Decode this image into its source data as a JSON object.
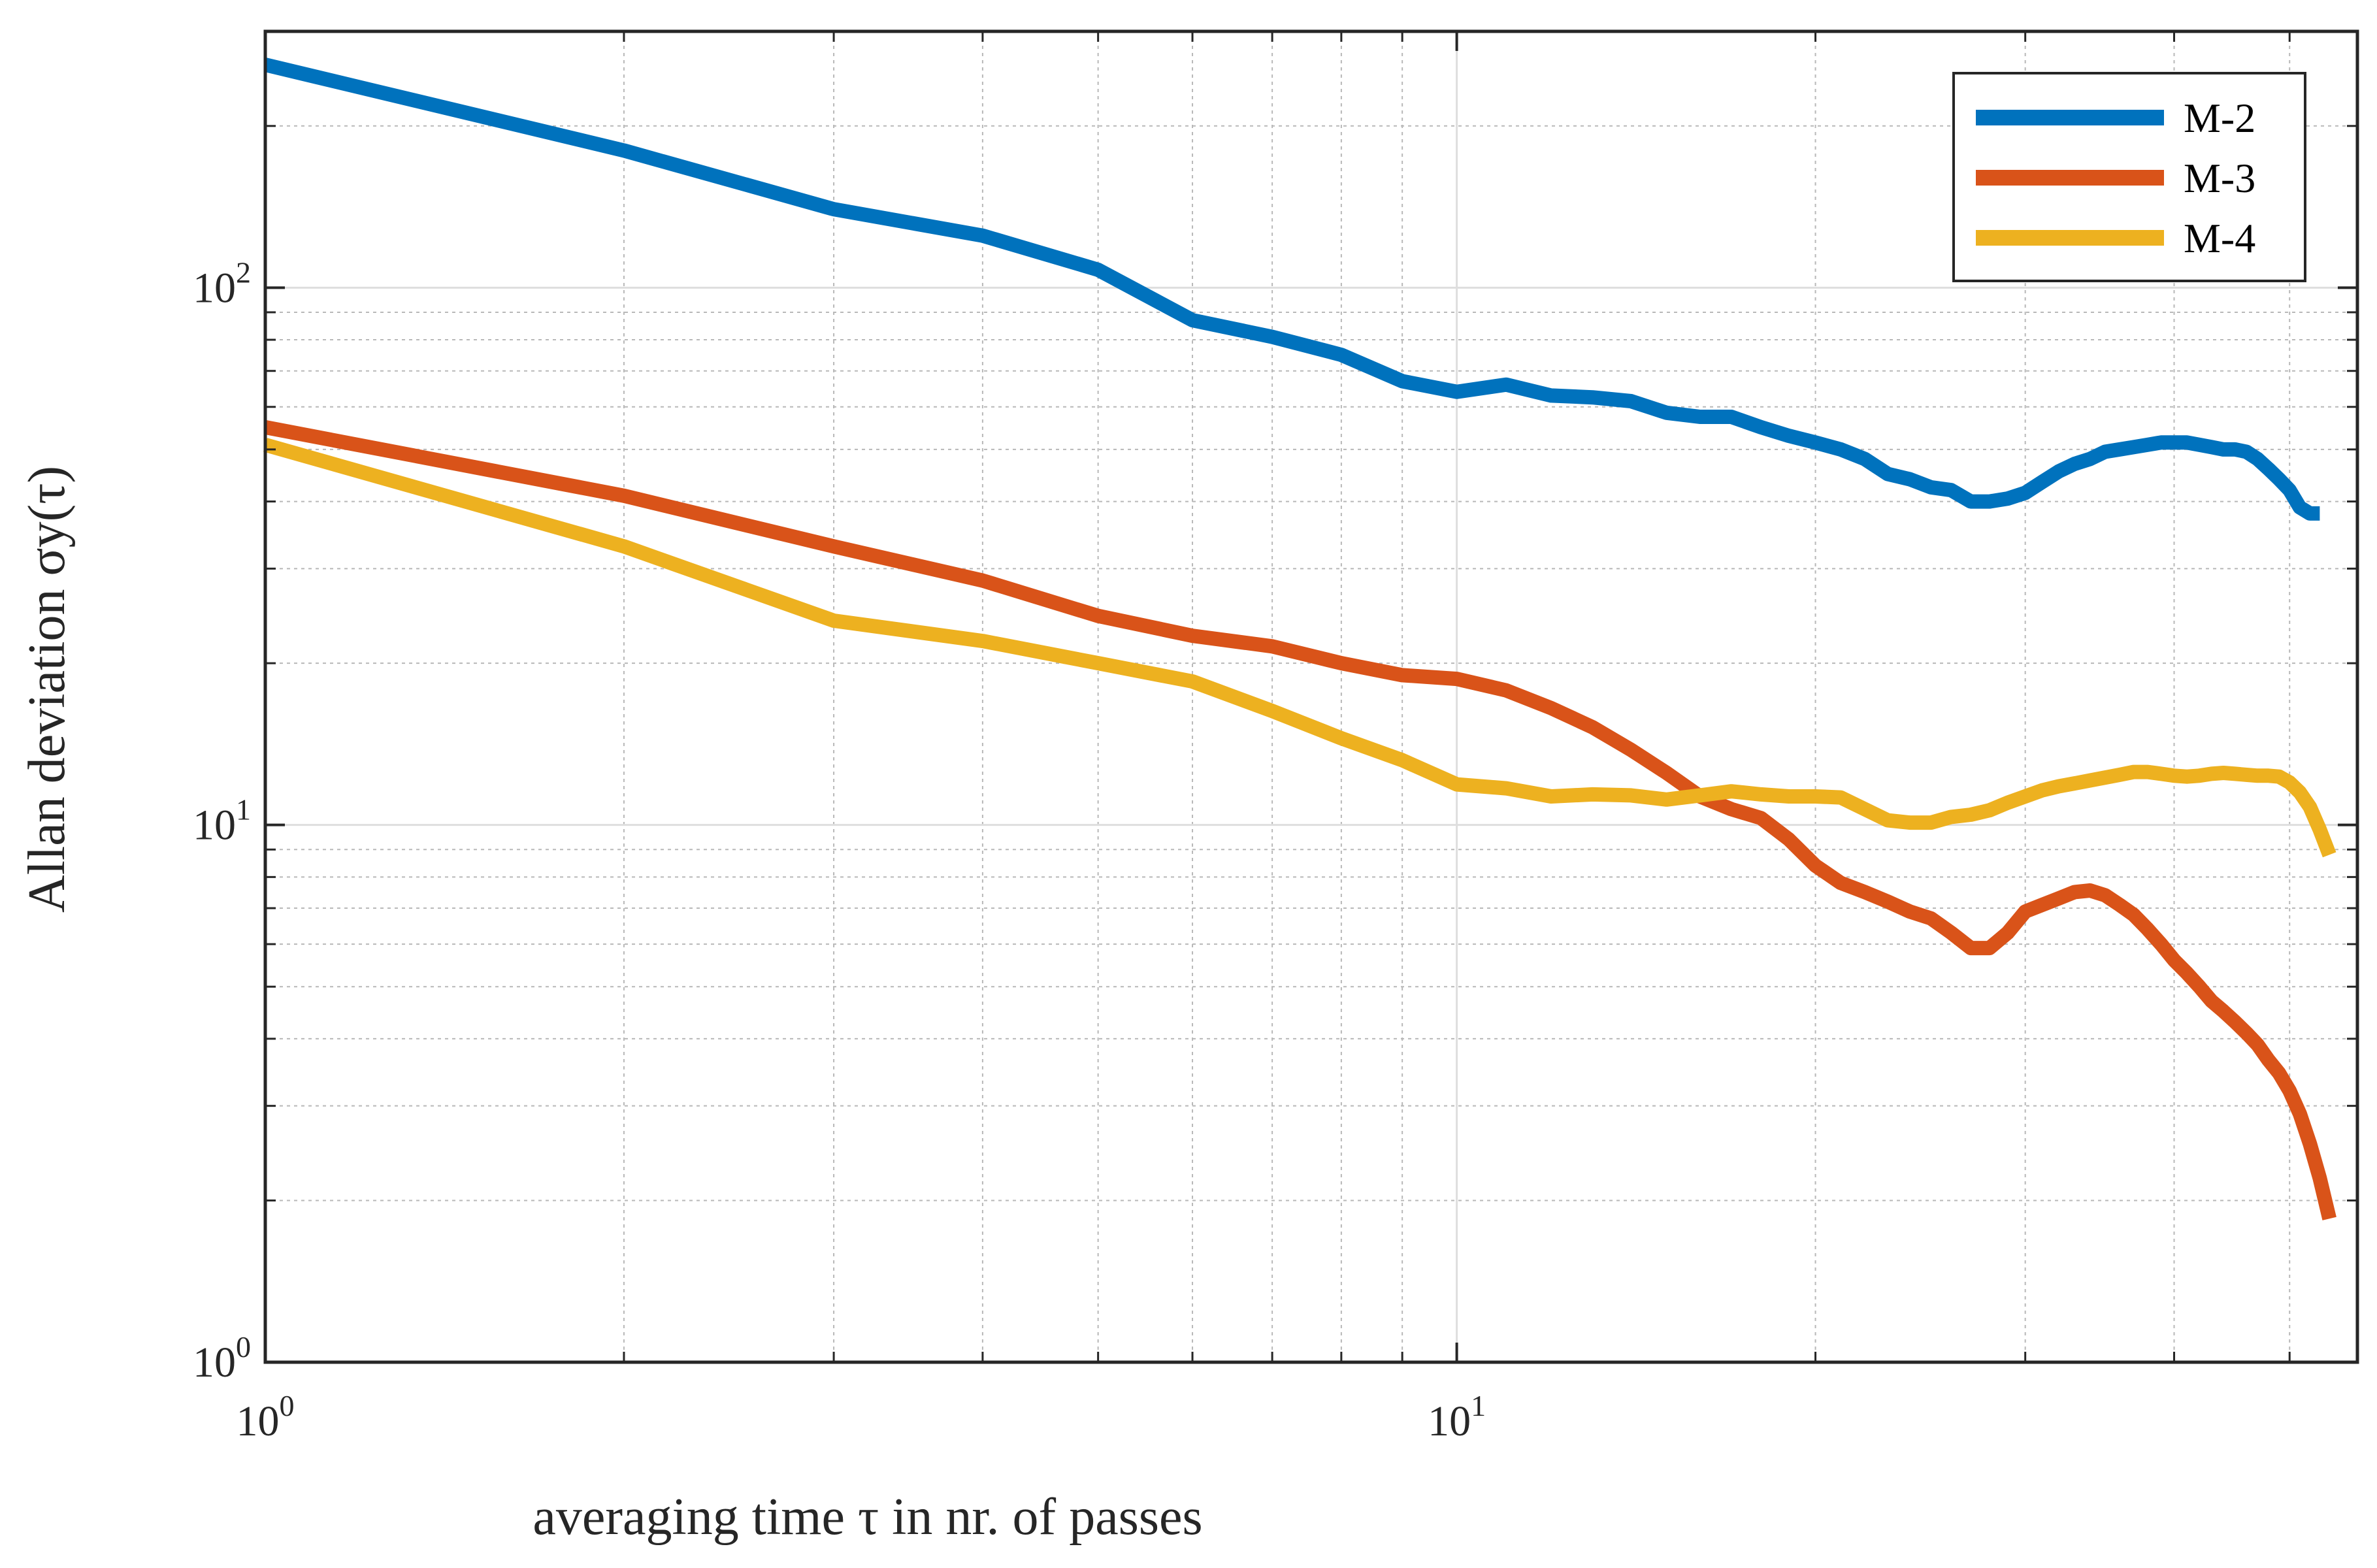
{
  "chart_data": {
    "type": "line",
    "title": "",
    "xscale": "log",
    "yscale": "log",
    "xlim": [
      1,
      57
    ],
    "ylim": [
      1,
      300
    ],
    "xlabel": "averaging time τ in nr. of passes",
    "ylabel": "Allan deviation σy(τ)",
    "xticks": [
      {
        "base": "10",
        "exp": "0",
        "value": 1
      },
      {
        "base": "10",
        "exp": "1",
        "value": 10
      }
    ],
    "yticks": [
      {
        "base": "10",
        "exp": "0",
        "value": 1
      },
      {
        "base": "10",
        "exp": "1",
        "value": 10
      },
      {
        "base": "10",
        "exp": "2",
        "value": 100
      }
    ],
    "grid": true,
    "legend_position": "top-right",
    "series": [
      {
        "name": "M-2",
        "color": "#0072BD",
        "x": [
          1,
          2,
          3,
          4,
          5,
          6,
          7,
          8,
          9,
          10,
          11,
          12,
          13,
          14,
          15,
          16,
          17,
          18,
          19,
          20,
          21,
          22,
          23,
          24,
          25,
          26,
          27,
          28,
          29,
          30,
          31,
          32,
          33,
          34,
          35,
          36,
          37,
          38,
          39,
          40,
          41,
          42,
          43,
          44,
          45,
          46,
          47,
          48,
          49,
          50,
          51,
          52,
          53
        ],
        "y": [
          260,
          180,
          140,
          125,
          108,
          87,
          81,
          75,
          67,
          64,
          66,
          63,
          62.5,
          61.5,
          58.5,
          57.5,
          57.5,
          55,
          53,
          51.5,
          50,
          48,
          45,
          44,
          42.5,
          42,
          40,
          40,
          40.5,
          41.5,
          43.5,
          45.5,
          47,
          48,
          49.5,
          50,
          50.5,
          51,
          51.5,
          51.5,
          51.5,
          51,
          50.5,
          50,
          50,
          49.5,
          48,
          46,
          44,
          42,
          39,
          38,
          38
        ]
      },
      {
        "name": "M-3",
        "color": "#D95319",
        "x": [
          1,
          2,
          3,
          4,
          5,
          6,
          7,
          8,
          9,
          10,
          11,
          12,
          13,
          14,
          15,
          16,
          17,
          18,
          19,
          20,
          21,
          22,
          23,
          24,
          25,
          26,
          27,
          28,
          29,
          30,
          31,
          32,
          33,
          34,
          35,
          36,
          37,
          38,
          39,
          40,
          41,
          42,
          43,
          44,
          45,
          46,
          47,
          48,
          49,
          50,
          51,
          52,
          53,
          54
        ],
        "y": [
          55,
          41,
          33,
          28.5,
          24.5,
          22.5,
          21.5,
          20,
          19,
          18.7,
          17.8,
          16.5,
          15.2,
          13.8,
          12.5,
          11.3,
          10.7,
          10.3,
          9.4,
          8.4,
          7.8,
          7.5,
          7.2,
          6.9,
          6.7,
          6.3,
          5.9,
          5.9,
          6.3,
          6.9,
          7.1,
          7.3,
          7.5,
          7.55,
          7.4,
          7.1,
          6.8,
          6.4,
          6.0,
          5.6,
          5.3,
          5.0,
          4.7,
          4.5,
          4.3,
          4.1,
          3.9,
          3.65,
          3.45,
          3.2,
          2.9,
          2.55,
          2.2,
          1.85
        ]
      },
      {
        "name": "M-4",
        "color": "#EDB120",
        "x": [
          1,
          2,
          3,
          4,
          5,
          6,
          7,
          8,
          9,
          10,
          11,
          12,
          13,
          14,
          15,
          16,
          17,
          18,
          19,
          20,
          21,
          22,
          23,
          24,
          25,
          26,
          27,
          28,
          29,
          30,
          31,
          32,
          33,
          34,
          35,
          36,
          37,
          38,
          39,
          40,
          41,
          42,
          43,
          44,
          45,
          46,
          47,
          48,
          49,
          50,
          51,
          52,
          53,
          54
        ],
        "y": [
          51,
          33,
          24,
          22,
          20,
          18.5,
          16.3,
          14.5,
          13.2,
          11.9,
          11.7,
          11.3,
          11.4,
          11.35,
          11.15,
          11.35,
          11.55,
          11.4,
          11.3,
          11.3,
          11.25,
          10.7,
          10.2,
          10.1,
          10.1,
          10.35,
          10.45,
          10.65,
          11.0,
          11.3,
          11.6,
          11.8,
          11.95,
          12.1,
          12.25,
          12.4,
          12.55,
          12.55,
          12.45,
          12.35,
          12.3,
          12.35,
          12.45,
          12.5,
          12.45,
          12.4,
          12.35,
          12.35,
          12.3,
          12.0,
          11.5,
          10.8,
          9.8,
          8.8
        ]
      }
    ]
  }
}
